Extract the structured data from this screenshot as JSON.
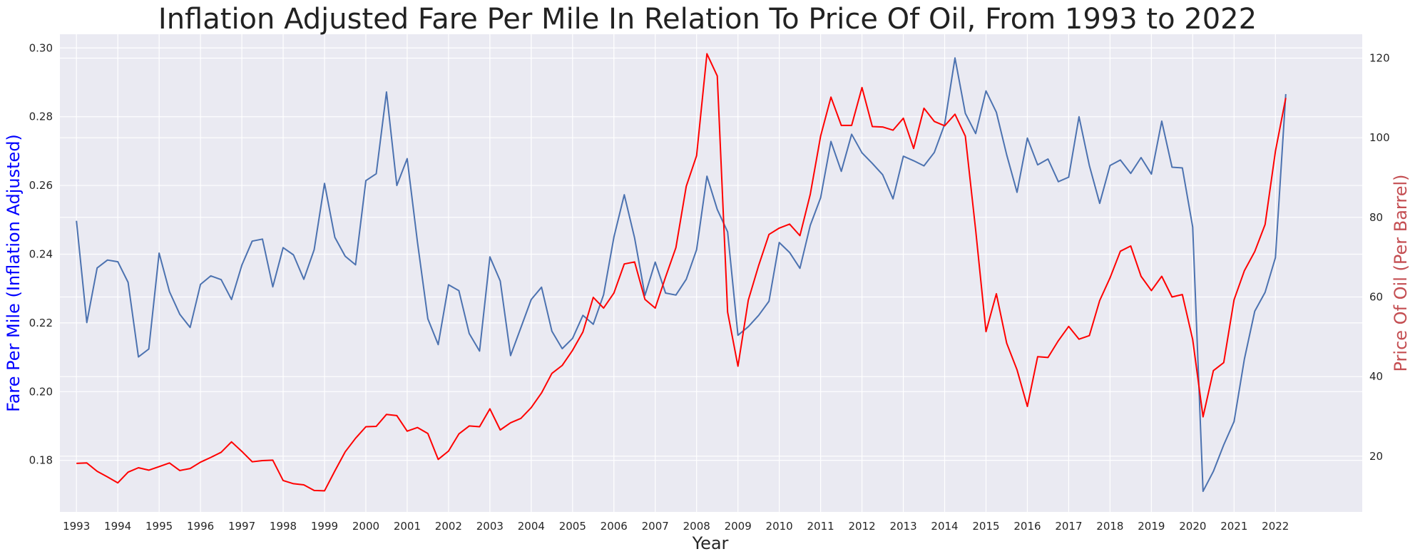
{
  "chart_data": {
    "type": "line",
    "title": "Inflation Adjusted Fare Per Mile In Relation To Price Of Oil, From 1993 to 2022",
    "xlabel": "Year",
    "ylabel": "Fare Per Mile (Inflation Adjusted)",
    "y2label": "Price Of Oil (Per Barrel)",
    "x_ticks": [
      "1993",
      "1994",
      "1995",
      "1996",
      "1997",
      "1998",
      "1999",
      "2000",
      "2001",
      "2002",
      "2003",
      "2004",
      "2005",
      "2006",
      "2007",
      "2008",
      "2009",
      "2010",
      "2011",
      "2012",
      "2013",
      "2014",
      "2015",
      "2016",
      "2017",
      "2018",
      "2019",
      "2020",
      "2021",
      "2022"
    ],
    "y_ticks": [
      "0.18",
      "0.20",
      "0.22",
      "0.24",
      "0.26",
      "0.28",
      "0.30"
    ],
    "y2_ticks": [
      "20",
      "40",
      "60",
      "80",
      "100",
      "120"
    ],
    "xlim": [
      1992.6,
      2024.1
    ],
    "ylim": [
      0.165,
      0.304
    ],
    "y2lim": [
      6,
      126
    ],
    "grid": true,
    "colors": {
      "background": "#eaeaf2",
      "grid": "#ffffff",
      "fare": "#4c72b0",
      "oil": "#ff0000"
    },
    "x": [
      1993.0,
      1993.25,
      1993.5,
      1993.75,
      1994.0,
      1994.25,
      1994.5,
      1994.75,
      1995.0,
      1995.25,
      1995.5,
      1995.75,
      1996.0,
      1996.25,
      1996.5,
      1996.75,
      1997.0,
      1997.25,
      1997.5,
      1997.75,
      1998.0,
      1998.25,
      1998.5,
      1998.75,
      1999.0,
      1999.25,
      1999.5,
      1999.75,
      2000.0,
      2000.25,
      2000.5,
      2000.75,
      2001.0,
      2001.25,
      2001.5,
      2001.75,
      2002.0,
      2002.25,
      2002.5,
      2002.75,
      2003.0,
      2003.25,
      2003.5,
      2003.75,
      2004.0,
      2004.25,
      2004.5,
      2004.75,
      2005.0,
      2005.25,
      2005.5,
      2005.75,
      2006.0,
      2006.25,
      2006.5,
      2006.75,
      2007.0,
      2007.25,
      2007.5,
      2007.75,
      2008.0,
      2008.25,
      2008.5,
      2008.75,
      2009.0,
      2009.25,
      2009.5,
      2009.75,
      2010.0,
      2010.25,
      2010.5,
      2010.75,
      2011.0,
      2011.25,
      2011.5,
      2011.75,
      2012.0,
      2012.25,
      2012.5,
      2012.75,
      2013.0,
      2013.25,
      2013.5,
      2013.75,
      2014.0,
      2014.25,
      2014.5,
      2014.75,
      2015.0,
      2015.25,
      2015.5,
      2015.75,
      2016.0,
      2016.25,
      2016.5,
      2016.75,
      2017.0,
      2017.25,
      2017.5,
      2017.75,
      2018.0,
      2018.25,
      2018.5,
      2018.75,
      2019.0,
      2019.25,
      2019.5,
      2019.75,
      2020.0,
      2020.25,
      2020.5,
      2020.75,
      2021.0,
      2021.25,
      2021.5,
      2021.75,
      2022.0,
      2022.25
    ],
    "series": [
      {
        "name": "Fare Per Mile (Inflation Adjusted)",
        "axis": "left",
        "values": [
          0.2497,
          0.2201,
          0.236,
          0.2383,
          0.2378,
          0.2318,
          0.2101,
          0.2124,
          0.2403,
          0.2291,
          0.2225,
          0.2187,
          0.2312,
          0.2337,
          0.2326,
          0.2268,
          0.2368,
          0.2438,
          0.2444,
          0.2305,
          0.2419,
          0.2398,
          0.2327,
          0.2413,
          0.2606,
          0.2449,
          0.2394,
          0.2369,
          0.2614,
          0.2634,
          0.2872,
          0.26,
          0.2678,
          0.2434,
          0.2212,
          0.2137,
          0.2311,
          0.2294,
          0.2169,
          0.2118,
          0.2392,
          0.2322,
          0.2105,
          0.2186,
          0.2268,
          0.2304,
          0.2176,
          0.2125,
          0.2155,
          0.2222,
          0.2196,
          0.2282,
          0.245,
          0.2573,
          0.2447,
          0.228,
          0.2377,
          0.2287,
          0.2281,
          0.2327,
          0.2413,
          0.2627,
          0.253,
          0.2465,
          0.2164,
          0.2189,
          0.2222,
          0.2263,
          0.2434,
          0.2405,
          0.2359,
          0.2484,
          0.2564,
          0.2728,
          0.2641,
          0.2749,
          0.2695,
          0.2664,
          0.2631,
          0.2561,
          0.2685,
          0.2672,
          0.2657,
          0.2696,
          0.2778,
          0.2971,
          0.281,
          0.2751,
          0.2875,
          0.2813,
          0.2689,
          0.258,
          0.2738,
          0.266,
          0.2677,
          0.2611,
          0.2624,
          0.28,
          0.2658,
          0.2548,
          0.2658,
          0.2674,
          0.2635,
          0.2681,
          0.2633,
          0.2787,
          0.2653,
          0.2651,
          0.2479,
          0.171,
          0.1768,
          0.1845,
          0.1913,
          0.2095,
          0.2234,
          0.2289,
          0.239,
          0.2866
        ]
      },
      {
        "name": "Price Of Oil (Per Barrel)",
        "axis": "right",
        "values": [
          18.2,
          18.3,
          16.2,
          14.8,
          13.3,
          16.0,
          17.1,
          16.5,
          17.4,
          18.3,
          16.4,
          16.9,
          18.5,
          19.7,
          21.0,
          23.6,
          21.2,
          18.6,
          18.9,
          19.0,
          13.9,
          13.1,
          12.8,
          11.4,
          11.3,
          16.3,
          21.1,
          24.5,
          27.4,
          27.5,
          30.5,
          30.2,
          26.3,
          27.2,
          25.7,
          19.2,
          21.3,
          25.6,
          27.6,
          27.4,
          31.9,
          26.6,
          28.4,
          29.5,
          32.2,
          35.9,
          40.8,
          42.8,
          46.6,
          51.2,
          59.9,
          57.2,
          61.0,
          68.3,
          68.8,
          59.4,
          57.2,
          65.0,
          72.4,
          87.8,
          95.5,
          121.1,
          115.5,
          56.2,
          42.6,
          59.2,
          67.9,
          75.7,
          77.3,
          78.3,
          75.4,
          85.8,
          100.4,
          110.2,
          103.1,
          103.1,
          112.6,
          102.8,
          102.7,
          101.9,
          104.9,
          97.3,
          107.4,
          104.1,
          103.0,
          105.9,
          100.4,
          76.8,
          51.3,
          60.8,
          48.4,
          41.7,
          32.5,
          45.0,
          44.8,
          49.0,
          52.6,
          49.4,
          50.3,
          59.1,
          64.8,
          71.5,
          72.8,
          65.2,
          61.6,
          65.2,
          60.0,
          60.6,
          49.3,
          29.9,
          41.5,
          43.5,
          59.3,
          66.6,
          71.4,
          78.2,
          96.6,
          110.0
        ]
      }
    ]
  }
}
